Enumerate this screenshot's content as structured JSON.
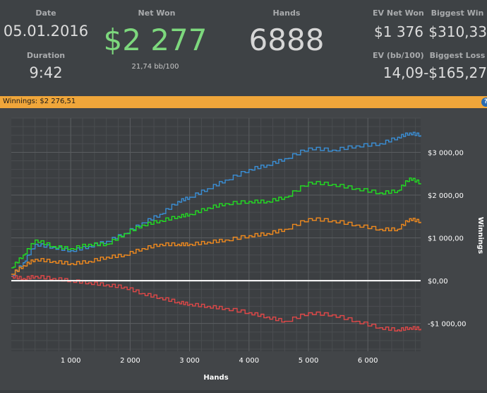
{
  "stats": {
    "date_label": "Date",
    "date_value": "05.01.2016",
    "duration_label": "Duration",
    "duration_value": "9:42",
    "net_won_label": "Net Won",
    "net_won_value": "$2 277",
    "net_won_sub": "21,74 bb/100",
    "hands_label": "Hands",
    "hands_value": "6888",
    "ev_net_won_label": "EV Net Won",
    "ev_net_won_value": "$1 376",
    "biggest_win_label": "Biggest Win",
    "biggest_win_value": "$310,33",
    "ev_bb_label": "EV (bb/100)",
    "ev_bb_value": "14,09",
    "biggest_loss_label": "Biggest Loss",
    "biggest_loss_value": "-$165,27"
  },
  "bar": {
    "title": "Winnings: $2 276,51",
    "help_icon": "?"
  },
  "colors": {
    "net_won_green": "#7dd87d",
    "bar_orange": "#f0a63a",
    "blue": "#3a8fd6",
    "green": "#22dd22",
    "orange": "#f08a1e",
    "red": "#e04848"
  },
  "chart_data": {
    "type": "line",
    "xlabel": "Hands",
    "ylabel": "Winnings",
    "xlim": [
      0,
      6888
    ],
    "ylim": [
      -1650,
      3800
    ],
    "x_ticks": [
      1000,
      2000,
      3000,
      4000,
      5000,
      6000
    ],
    "x_tick_labels": [
      "1 000",
      "2 000",
      "3 000",
      "4 000",
      "5 000",
      "6 000"
    ],
    "y_ticks": [
      3000,
      2000,
      1000,
      0,
      -1000
    ],
    "y_tick_labels": [
      "$3 000,00",
      "$2 000,00",
      "$1 000,00",
      "$0,00",
      "-$1 000,00"
    ],
    "grid": true,
    "series": [
      {
        "color": "#3a8fd6",
        "points": [
          [
            0,
            100
          ],
          [
            200,
            420
          ],
          [
            400,
            850
          ],
          [
            700,
            780
          ],
          [
            1000,
            700
          ],
          [
            1300,
            800
          ],
          [
            1600,
            920
          ],
          [
            1900,
            1100
          ],
          [
            2200,
            1350
          ],
          [
            2500,
            1550
          ],
          [
            2800,
            1850
          ],
          [
            3000,
            1950
          ],
          [
            3300,
            2150
          ],
          [
            3600,
            2350
          ],
          [
            4000,
            2600
          ],
          [
            4300,
            2700
          ],
          [
            4600,
            2850
          ],
          [
            5000,
            3100
          ],
          [
            5400,
            3050
          ],
          [
            5800,
            3150
          ],
          [
            6200,
            3200
          ],
          [
            6500,
            3350
          ],
          [
            6700,
            3450
          ],
          [
            6888,
            3400
          ]
        ]
      },
      {
        "color": "#22dd22",
        "points": [
          [
            0,
            300
          ],
          [
            200,
            600
          ],
          [
            400,
            950
          ],
          [
            700,
            800
          ],
          [
            1000,
            750
          ],
          [
            1300,
            850
          ],
          [
            1600,
            850
          ],
          [
            1900,
            1100
          ],
          [
            2200,
            1300
          ],
          [
            2500,
            1400
          ],
          [
            2800,
            1500
          ],
          [
            3000,
            1550
          ],
          [
            3300,
            1700
          ],
          [
            3600,
            1800
          ],
          [
            4000,
            1850
          ],
          [
            4300,
            1850
          ],
          [
            4600,
            1950
          ],
          [
            5000,
            2300
          ],
          [
            5400,
            2250
          ],
          [
            5800,
            2150
          ],
          [
            6200,
            2050
          ],
          [
            6500,
            2100
          ],
          [
            6700,
            2400
          ],
          [
            6888,
            2277
          ]
        ]
      },
      {
        "color": "#f08a1e",
        "points": [
          [
            0,
            150
          ],
          [
            200,
            350
          ],
          [
            400,
            500
          ],
          [
            700,
            450
          ],
          [
            1000,
            400
          ],
          [
            1300,
            450
          ],
          [
            1600,
            550
          ],
          [
            1900,
            600
          ],
          [
            2200,
            750
          ],
          [
            2500,
            850
          ],
          [
            2800,
            850
          ],
          [
            3000,
            850
          ],
          [
            3300,
            900
          ],
          [
            3600,
            950
          ],
          [
            4000,
            1050
          ],
          [
            4300,
            1100
          ],
          [
            4600,
            1200
          ],
          [
            5000,
            1450
          ],
          [
            5400,
            1400
          ],
          [
            5800,
            1300
          ],
          [
            6200,
            1200
          ],
          [
            6500,
            1200
          ],
          [
            6700,
            1450
          ],
          [
            6888,
            1376
          ]
        ]
      },
      {
        "color": "#e04848",
        "points": [
          [
            0,
            100
          ],
          [
            200,
            50
          ],
          [
            400,
            100
          ],
          [
            700,
            50
          ],
          [
            1000,
            0
          ],
          [
            1300,
            -50
          ],
          [
            1600,
            -100
          ],
          [
            1900,
            -150
          ],
          [
            2200,
            -300
          ],
          [
            2500,
            -400
          ],
          [
            2800,
            -500
          ],
          [
            3000,
            -550
          ],
          [
            3300,
            -600
          ],
          [
            3600,
            -650
          ],
          [
            4000,
            -750
          ],
          [
            4300,
            -850
          ],
          [
            4600,
            -950
          ],
          [
            5000,
            -750
          ],
          [
            5400,
            -800
          ],
          [
            5800,
            -950
          ],
          [
            6200,
            -1100
          ],
          [
            6500,
            -1150
          ],
          [
            6700,
            -1100
          ],
          [
            6888,
            -1120
          ]
        ]
      }
    ]
  }
}
